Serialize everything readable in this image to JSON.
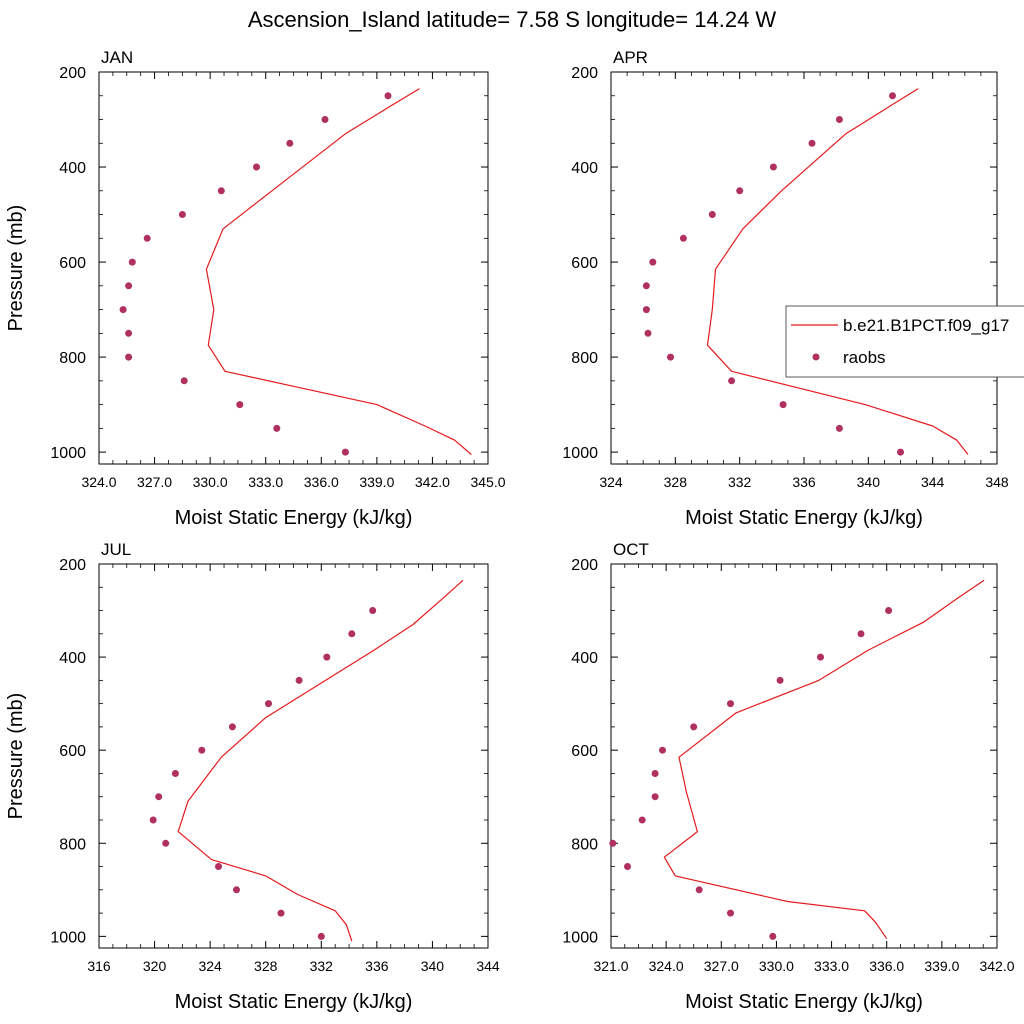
{
  "title": "Ascension_Island  latitude= 7.58 S longitude= 14.24 W",
  "colors": {
    "model_line": "#e41a1c",
    "raobs_marker": "#b03060",
    "axis": "#000000"
  },
  "legend": {
    "placement": "right-middle",
    "entries": [
      {
        "label": "b.e21.B1PCT.f09_g17",
        "marker": "line"
      },
      {
        "label": "raobs",
        "marker": "dot"
      }
    ]
  },
  "chart_data": [
    {
      "type": "line",
      "panel_title": "JAN",
      "xlabel": "Moist Static Energy (kJ/kg)",
      "ylabel": "Pressure (mb)",
      "xlim": [
        324,
        345
      ],
      "ylim": [
        1025,
        200
      ],
      "y_reversed": true,
      "xticks": [
        "324.0",
        "327.0",
        "330.0",
        "333.0",
        "336.0",
        "339.0",
        "342.0",
        "345.0"
      ],
      "yticks": [
        "200",
        "400",
        "600",
        "800",
        "1000"
      ],
      "series": [
        {
          "name": "b.e21.B1PCT.f09_g17",
          "style": "line",
          "x": [
            344.1,
            343.2,
            341.6,
            339.0,
            330.8,
            329.9,
            330.2,
            329.8,
            330.7,
            334.0,
            337.3,
            339.6,
            341.3
          ],
          "y": [
            1005,
            975,
            945,
            900,
            830,
            775,
            700,
            615,
            530,
            430,
            330,
            275,
            235
          ]
        },
        {
          "name": "raobs",
          "style": "dots",
          "x": [
            337.3,
            333.6,
            331.6,
            328.6,
            325.6,
            325.6,
            325.3,
            325.6,
            325.8,
            326.6,
            328.5,
            330.6,
            332.5,
            334.3,
            336.2,
            339.6
          ],
          "y": [
            1000,
            950,
            900,
            850,
            800,
            750,
            700,
            650,
            600,
            550,
            500,
            450,
            400,
            350,
            300,
            250
          ]
        }
      ]
    },
    {
      "type": "line",
      "panel_title": "APR",
      "xlabel": "Moist Static Energy (kJ/kg)",
      "ylabel": "",
      "xlim": [
        324,
        348
      ],
      "ylim": [
        1025,
        200
      ],
      "y_reversed": true,
      "xticks": [
        "324",
        "328",
        "332",
        "336",
        "340",
        "344",
        "348"
      ],
      "yticks": [
        "200",
        "400",
        "600",
        "800",
        "1000"
      ],
      "series": [
        {
          "name": "b.e21.B1PCT.f09_g17",
          "style": "line",
          "x": [
            346.2,
            345.5,
            344.0,
            339.8,
            331.5,
            330.0,
            330.3,
            330.5,
            332.2,
            334.6,
            338.6,
            341.2,
            343.1
          ],
          "y": [
            1005,
            975,
            945,
            900,
            830,
            775,
            700,
            615,
            530,
            450,
            330,
            275,
            235
          ]
        },
        {
          "name": "raobs",
          "style": "dots",
          "x": [
            342.0,
            338.2,
            334.7,
            331.5,
            327.7,
            326.3,
            326.2,
            326.2,
            326.6,
            328.5,
            330.3,
            332.0,
            334.1,
            336.5,
            338.2,
            341.5
          ],
          "y": [
            1000,
            950,
            900,
            850,
            800,
            750,
            700,
            650,
            600,
            550,
            500,
            450,
            400,
            350,
            300,
            250
          ]
        }
      ]
    },
    {
      "type": "line",
      "panel_title": "JUL",
      "xlabel": "Moist Static Energy (kJ/kg)",
      "ylabel": "Pressure (mb)",
      "xlim": [
        316,
        344
      ],
      "ylim": [
        1025,
        200
      ],
      "y_reversed": true,
      "xticks": [
        "316",
        "320",
        "324",
        "328",
        "332",
        "336",
        "340",
        "344"
      ],
      "yticks": [
        "200",
        "400",
        "600",
        "800",
        "1000"
      ],
      "series": [
        {
          "name": "b.e21.B1PCT.f09_g17",
          "style": "line",
          "x": [
            334.2,
            333.8,
            333.0,
            330.3,
            328.0,
            324.1,
            321.7,
            322.4,
            324.8,
            328.0,
            332.3,
            335.8,
            338.6,
            340.7,
            342.2
          ],
          "y": [
            1010,
            975,
            945,
            910,
            870,
            835,
            775,
            710,
            615,
            530,
            450,
            385,
            330,
            275,
            235
          ]
        },
        {
          "name": "raobs",
          "style": "dots",
          "x": [
            332.0,
            329.1,
            325.9,
            324.6,
            320.8,
            319.9,
            320.3,
            321.5,
            323.4,
            325.6,
            328.2,
            330.4,
            332.4,
            334.2,
            335.7
          ],
          "y": [
            1000,
            950,
            900,
            850,
            800,
            750,
            700,
            650,
            600,
            550,
            500,
            450,
            400,
            350,
            300
          ]
        }
      ]
    },
    {
      "type": "line",
      "panel_title": "OCT",
      "xlabel": "Moist Static Energy (kJ/kg)",
      "ylabel": "",
      "xlim": [
        321,
        342
      ],
      "ylim": [
        1025,
        200
      ],
      "y_reversed": true,
      "xticks": [
        "321.0",
        "324.0",
        "327.0",
        "330.0",
        "333.0",
        "336.0",
        "339.0",
        "342.0"
      ],
      "yticks": [
        "200",
        "400",
        "600",
        "800",
        "1000"
      ],
      "series": [
        {
          "name": "b.e21.B1PCT.f09_g17",
          "style": "line",
          "x": [
            336.0,
            335.4,
            334.8,
            330.6,
            324.5,
            323.9,
            325.7,
            325.1,
            324.7,
            327.8,
            332.3,
            335.0,
            338.0,
            339.8,
            341.3
          ],
          "y": [
            1005,
            970,
            945,
            925,
            870,
            830,
            775,
            690,
            615,
            520,
            450,
            385,
            325,
            275,
            235
          ]
        },
        {
          "name": "raobs",
          "style": "dots",
          "x": [
            329.8,
            327.5,
            325.8,
            321.9,
            321.1,
            322.7,
            323.4,
            323.4,
            323.8,
            325.5,
            327.5,
            330.2,
            332.4,
            334.6,
            336.1
          ],
          "y": [
            1000,
            950,
            900,
            850,
            800,
            750,
            700,
            650,
            600,
            550,
            500,
            450,
            400,
            350,
            300
          ]
        }
      ]
    }
  ]
}
